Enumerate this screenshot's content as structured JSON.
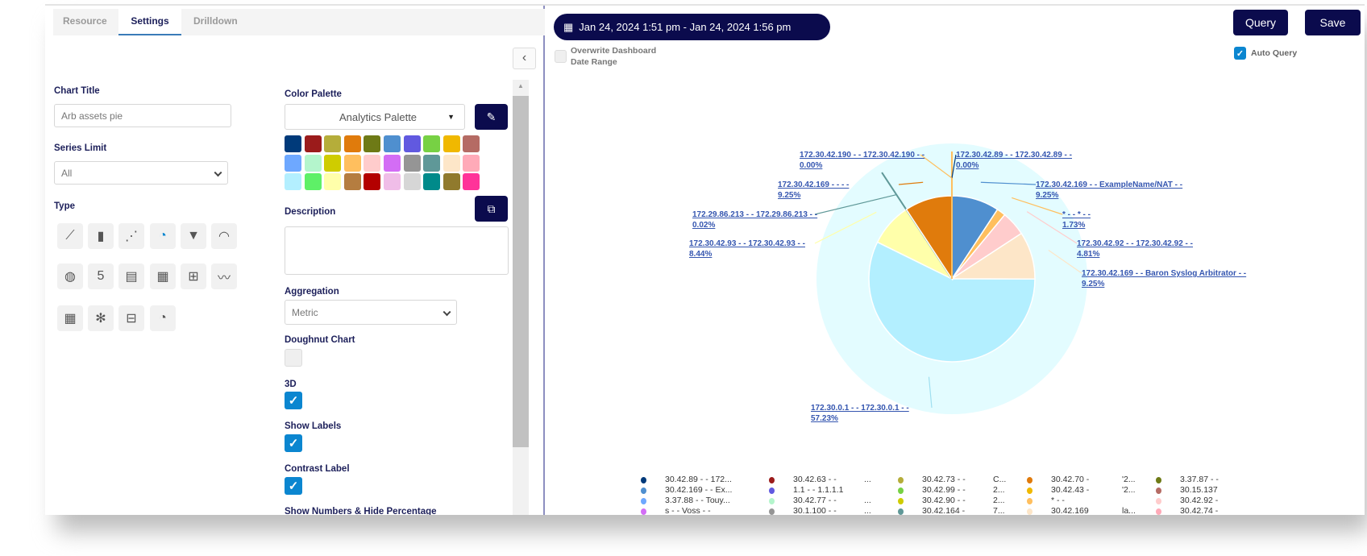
{
  "tabs": [
    {
      "label": "Resource"
    },
    {
      "label": "Settings",
      "active": true
    },
    {
      "label": "Drilldown"
    }
  ],
  "settings": {
    "chart_title_label": "Chart Title",
    "chart_title_value": "Arb assets pie",
    "series_limit_label": "Series Limit",
    "series_limit_value": "All",
    "type_label": "Type",
    "type_icons": [
      "line-chart-icon",
      "bar-chart-icon",
      "scatter-chart-icon",
      "pie-chart-icon",
      "funnel-icon",
      "gauge-icon",
      "globe-icon",
      "number-icon",
      "table-icon",
      "calculator-icon",
      "sankey-icon",
      "trend-icon",
      "grid-icon",
      "sunburst-icon",
      "pivot-table-icon",
      "pie-bar-icon"
    ],
    "type_glyphs": [
      "⟋",
      "▮",
      "⋰",
      "◔",
      "▼",
      "◠",
      "◍",
      "5",
      "▤",
      "▦",
      "⊞",
      "〰",
      "▦",
      "✻",
      "⊟",
      "◔"
    ],
    "active_type": 3,
    "color_palette_label": "Color Palette",
    "color_palette_value": "Analytics Palette",
    "palette": [
      "#003a7a",
      "#9b1b1b",
      "#b5ad3a",
      "#e07b0c",
      "#6e7a16",
      "#4f8fcf",
      "#6159e0",
      "#77d144",
      "#f0b800",
      "#b56b64",
      "#6ea8ff",
      "#b4f5cc",
      "#cfcc00",
      "#ffbf5e",
      "#ffcccc",
      "#d36df5",
      "#959595",
      "#5f9898",
      "#fde6c8",
      "#ffaab8",
      "#b3efff",
      "#5ef067",
      "#ffffaa",
      "#b57d40",
      "#b30000",
      "#f0bde8",
      "#d6d6d6",
      "#008a8a",
      "#907a2d",
      "#ff3399"
    ],
    "description_label": "Description",
    "description_value": "",
    "aggregation_label": "Aggregation",
    "aggregation_value": "Metric",
    "doughnut_label": "Doughnut Chart",
    "doughnut": false,
    "3d_label": "3D",
    "3d": true,
    "show_labels_label": "Show Labels",
    "show_labels": true,
    "contrast_label": "Contrast Label",
    "contrast": true,
    "show_numbers_label": "Show Numbers & Hide Percentage"
  },
  "header": {
    "date_range": "Jan 24, 2024 1:51 pm - Jan 24, 2024 1:56 pm",
    "overwrite_label_1": "Overwrite Dashboard",
    "overwrite_label_2": "Date Range",
    "overwrite": false,
    "query": "Query",
    "save": "Save",
    "auto_query_label": "Auto Query",
    "auto_query": true
  },
  "chart_data": {
    "type": "pie",
    "3d": true,
    "slices": [
      {
        "label": "172.30.42.89 - - 172.30.42.89 - -",
        "percent_label": "0.00%",
        "value": 0.0,
        "color": "#003a7a"
      },
      {
        "label": "172.30.42.169 - - ExampleName/NAT - -",
        "percent_label": "9.25%",
        "value": 9.25,
        "color": "#4f8fcf"
      },
      {
        "label": "* - - * - -",
        "percent_label": "1.73%",
        "value": 1.73,
        "color": "#ffbf5e"
      },
      {
        "label": "172.30.42.92 - - 172.30.42.92 - -",
        "percent_label": "4.81%",
        "value": 4.81,
        "color": "#ffcccc"
      },
      {
        "label": "172.30.42.169 - - Baron Syslog Arbitrator - -",
        "percent_label": "9.25%",
        "value": 9.25,
        "color": "#fde6c8"
      },
      {
        "label": "172.30.0.1 - - 172.30.0.1 - -",
        "percent_label": "57.23%",
        "value": 57.23,
        "color": "#b3efff"
      },
      {
        "label": "172.30.42.93 - - 172.30.42.93 - -",
        "percent_label": "8.44%",
        "value": 8.44,
        "color": "#ffffaa"
      },
      {
        "label": "172.29.86.213 - - 172.29.86.213 - -",
        "percent_label": "0.02%",
        "value": 0.02,
        "color": "#5f9898"
      },
      {
        "label": "172.30.42.169 - - - -",
        "percent_label": "9.25%",
        "value": 9.25,
        "color": "#e07b0c"
      },
      {
        "label": "172.30.42.190 - - 172.30.42.190 - -",
        "percent_label": "0.00%",
        "value": 0.0,
        "color": "#ffbf5e"
      }
    ]
  },
  "legend": [
    {
      "text": "30.42.89 - - 172...",
      "extra": "",
      "color": "#003a7a"
    },
    {
      "text": "30.42.169 - - Ex...",
      "extra": "",
      "color": "#4f8fcf"
    },
    {
      "text": "3.37.88 - - Touy...",
      "extra": "",
      "color": "#6ea8ff"
    },
    {
      "text": "s - - Voss - -",
      "extra": "",
      "color": "#d36df5"
    },
    {
      "text": "30.42.63 - -",
      "extra": "...",
      "color": "#9b1b1b"
    },
    {
      "text": "1.1 - - 1.1.1.1",
      "extra": "",
      "color": "#6159e0"
    },
    {
      "text": "30.42.77 - -",
      "extra": "...",
      "color": "#b4f5cc"
    },
    {
      "text": "30.1.100 - -",
      "extra": "...",
      "color": "#959595"
    },
    {
      "text": "30.42.73 - -",
      "extra": "C...",
      "color": "#b5ad3a"
    },
    {
      "text": "30.42.99 - -",
      "extra": "2...",
      "color": "#77d144"
    },
    {
      "text": "30.42.90 - -",
      "extra": "2...",
      "color": "#cfcc00"
    },
    {
      "text": "30.42.164 -",
      "extra": "7...",
      "color": "#5f9898"
    },
    {
      "text": "30.42.70 -",
      "extra": "'2...",
      "color": "#e07b0c"
    },
    {
      "text": "30.42.43 -",
      "extra": "'2...",
      "color": "#f0b800"
    },
    {
      "text": "* - -",
      "extra": "",
      "color": "#ffbf5e"
    },
    {
      "text": "30.42.169",
      "extra": "la...",
      "color": "#fde6c8"
    },
    {
      "text": "3.37.87 - -",
      "extra": "",
      "color": "#6e7a16"
    },
    {
      "text": "30.15.137",
      "extra": "",
      "color": "#b56b64"
    },
    {
      "text": "30.42.92 -",
      "extra": "",
      "color": "#ffcccc"
    },
    {
      "text": "30.42.74 -",
      "extra": "",
      "color": "#ffaab8"
    }
  ]
}
